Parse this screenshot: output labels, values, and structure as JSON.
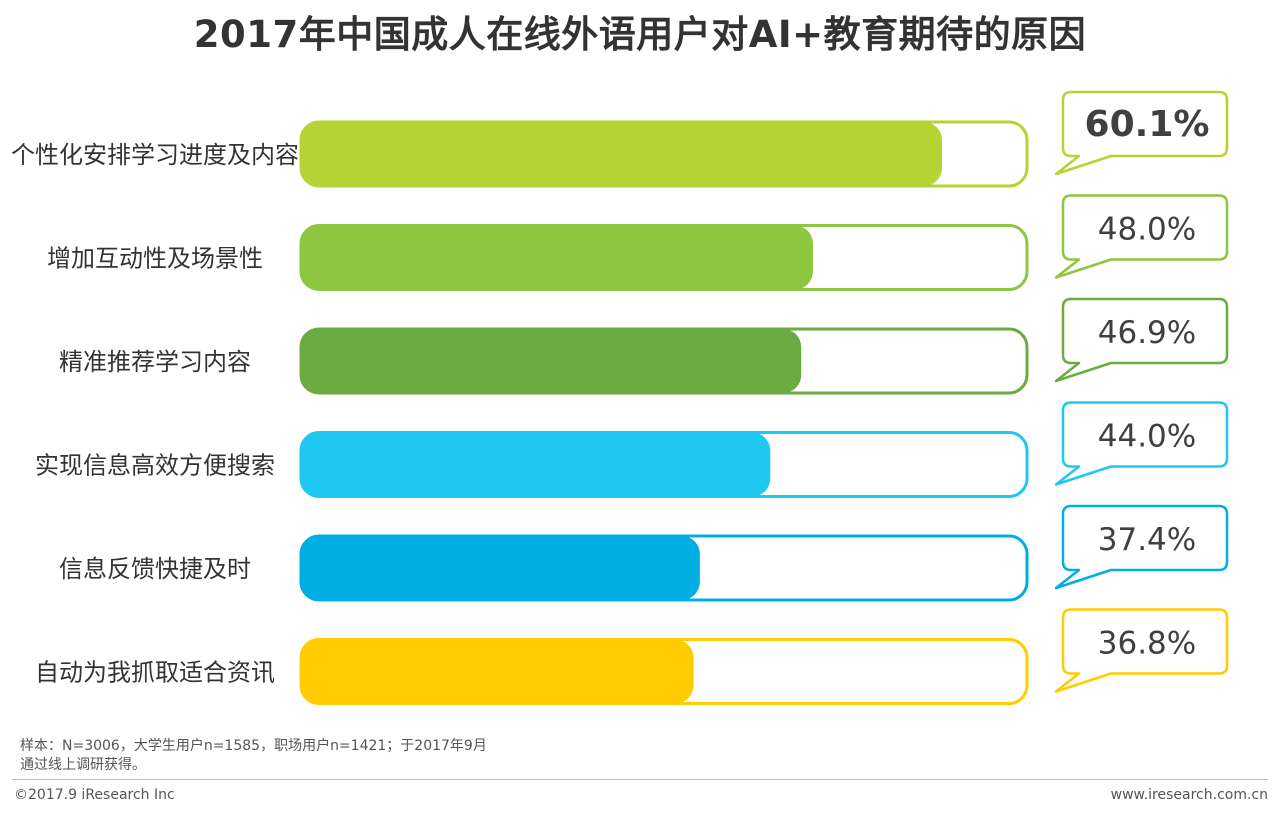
{
  "title": "2017年中国成人在线外语用户对AI+教育期待的原因",
  "chart_data": {
    "type": "bar",
    "orientation": "horizontal",
    "xlim": [
      0,
      70
    ],
    "categories": [
      "个性化安排学习进度及内容",
      "增加互动性及场景性",
      "精准推荐学习内容",
      "实现信息高效方便搜索",
      "信息反馈快捷及时",
      "自动为我抓取适合资讯"
    ],
    "values": [
      60.1,
      48.0,
      46.9,
      44.0,
      37.4,
      36.8
    ],
    "value_labels": [
      "60.1%",
      "48.0%",
      "46.9%",
      "44.0%",
      "37.4%",
      "36.8%"
    ],
    "colors": [
      "#b5d332",
      "#8dc63f",
      "#6aab42",
      "#1fc8f0",
      "#00aee4",
      "#ffcc00"
    ]
  },
  "footer": {
    "note_line1": "样本：N=3006，大学生用户n=1585，职场用户n=1421；于2017年9月",
    "note_line2": "通过线上调研获得。",
    "copyright": "©2017.9  iResearch Inc",
    "website": "www.iresearch.com.cn"
  }
}
